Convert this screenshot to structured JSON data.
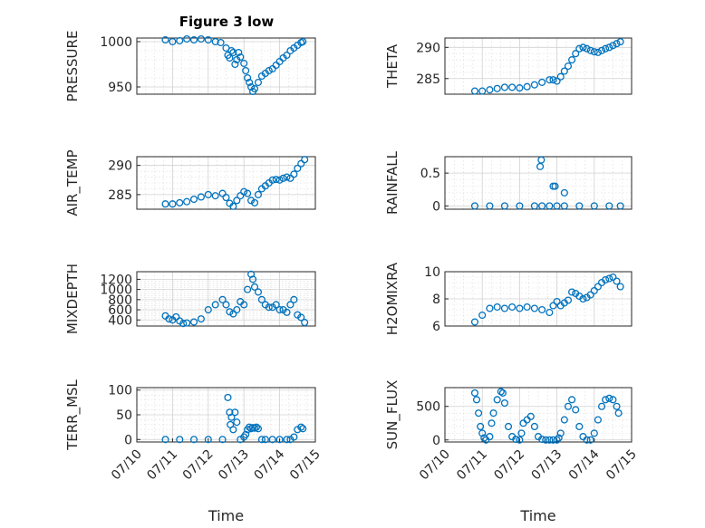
{
  "figure_title": "Figure 3 low",
  "colors": {
    "marker": "#0072bd",
    "axis": "#262626",
    "grid": "#d0d0d0"
  },
  "chart_data": [
    {
      "type": "scatter",
      "title": "Figure 3 low",
      "ylabel": "PRESSURE",
      "ylim": [
        942,
        1004
      ],
      "yticks": [
        "950",
        "1000"
      ],
      "xlim": [
        "07/10",
        "07/15"
      ],
      "grid": true,
      "x": [
        0.8,
        1.0,
        1.2,
        1.4,
        1.6,
        1.8,
        2.0,
        2.2,
        2.35,
        2.5,
        2.55,
        2.6,
        2.65,
        2.7,
        2.75,
        2.8,
        2.85,
        2.9,
        3.0,
        3.05,
        3.1,
        3.15,
        3.2,
        3.25,
        3.3,
        3.4,
        3.5,
        3.6,
        3.7,
        3.8,
        3.9,
        4.0,
        4.1,
        4.2,
        4.3,
        4.4,
        4.5,
        4.6,
        4.65
      ],
      "y": [
        1002,
        1000,
        1001,
        1003,
        1002,
        1003,
        1002,
        1000,
        999,
        993,
        985,
        982,
        990,
        988,
        975,
        980,
        988,
        983,
        976,
        968,
        960,
        955,
        950,
        945,
        948,
        955,
        962,
        965,
        968,
        970,
        974,
        978,
        982,
        985,
        990,
        993,
        996,
        999,
        1000
      ]
    },
    {
      "type": "scatter",
      "ylabel": "THETA",
      "ylim": [
        282.5,
        291.5
      ],
      "yticks": [
        "285",
        "290"
      ],
      "xlim": [
        "07/10",
        "07/15"
      ],
      "grid": true,
      "x": [
        0.8,
        1.0,
        1.2,
        1.4,
        1.6,
        1.8,
        2.0,
        2.2,
        2.4,
        2.6,
        2.8,
        2.9,
        3.0,
        3.1,
        3.2,
        3.3,
        3.4,
        3.5,
        3.6,
        3.7,
        3.8,
        3.9,
        4.0,
        4.1,
        4.2,
        4.3,
        4.4,
        4.5,
        4.6,
        4.7
      ],
      "y": [
        283.0,
        283.0,
        283.2,
        283.4,
        283.6,
        283.6,
        283.5,
        283.7,
        284.0,
        284.4,
        284.8,
        284.8,
        284.6,
        285.3,
        286.2,
        287.0,
        288.0,
        289.0,
        289.8,
        290.0,
        289.8,
        289.5,
        289.3,
        289.2,
        289.5,
        289.8,
        290.0,
        290.3,
        290.6,
        290.9
      ]
    },
    {
      "type": "scatter",
      "ylabel": "AIR_TEMP",
      "ylim": [
        282.5,
        291.5
      ],
      "yticks": [
        "285",
        "290"
      ],
      "xlim": [
        "07/10",
        "07/15"
      ],
      "grid": true,
      "x": [
        0.8,
        1.0,
        1.2,
        1.4,
        1.6,
        1.8,
        2.0,
        2.2,
        2.4,
        2.5,
        2.6,
        2.7,
        2.8,
        2.9,
        3.0,
        3.1,
        3.2,
        3.3,
        3.4,
        3.5,
        3.6,
        3.7,
        3.8,
        3.9,
        4.0,
        4.1,
        4.2,
        4.3,
        4.4,
        4.5,
        4.6,
        4.7
      ],
      "y": [
        283.4,
        283.4,
        283.6,
        283.8,
        284.2,
        284.6,
        285.0,
        284.8,
        285.2,
        284.5,
        283.5,
        283.0,
        284.0,
        284.8,
        285.5,
        285.2,
        284.0,
        283.6,
        285.0,
        286.0,
        286.5,
        287.0,
        287.5,
        287.6,
        287.5,
        287.8,
        288.0,
        287.8,
        288.5,
        289.5,
        290.3,
        291.0
      ]
    },
    {
      "type": "scatter",
      "ylabel": "RAINFALL",
      "ylim": [
        -0.05,
        0.75
      ],
      "yticks": [
        "0",
        "0.5"
      ],
      "xlim": [
        "07/10",
        "07/15"
      ],
      "grid": true,
      "x": [
        0.8,
        1.2,
        1.6,
        2.0,
        2.4,
        2.55,
        2.58,
        2.6,
        2.8,
        2.9,
        2.95,
        3.0,
        3.2,
        3.2,
        3.6,
        4.0,
        4.4,
        4.7
      ],
      "y": [
        0,
        0,
        0,
        0,
        0,
        0.6,
        0.7,
        0,
        0,
        0.3,
        0.3,
        0,
        0.2,
        0,
        0,
        0,
        0,
        0
      ]
    },
    {
      "type": "scatter",
      "ylabel": "MIXDEPTH",
      "ylim": [
        280,
        1350
      ],
      "yticks": [
        "400",
        "600",
        "800",
        "1000",
        "1200"
      ],
      "xlim": [
        "07/10",
        "07/15"
      ],
      "grid": true,
      "x": [
        0.8,
        0.9,
        1.0,
        1.1,
        1.2,
        1.3,
        1.4,
        1.6,
        1.8,
        2.0,
        2.2,
        2.4,
        2.5,
        2.6,
        2.7,
        2.8,
        2.9,
        3.0,
        3.1,
        3.2,
        3.25,
        3.3,
        3.4,
        3.5,
        3.6,
        3.7,
        3.8,
        3.9,
        4.0,
        4.1,
        4.2,
        4.3,
        4.4,
        4.5,
        4.6,
        4.7
      ],
      "y": [
        480,
        420,
        400,
        460,
        380,
        330,
        340,
        360,
        420,
        600,
        700,
        800,
        700,
        560,
        520,
        600,
        760,
        700,
        1000,
        1300,
        1200,
        1050,
        950,
        800,
        700,
        650,
        650,
        700,
        600,
        600,
        550,
        700,
        800,
        500,
        450,
        350
      ]
    },
    {
      "type": "scatter",
      "ylabel": "H2OMIXRA",
      "ylim": [
        6,
        10
      ],
      "yticks": [
        "6",
        "8",
        "10"
      ],
      "xlim": [
        "07/10",
        "07/15"
      ],
      "grid": true,
      "x": [
        0.8,
        1.0,
        1.2,
        1.4,
        1.6,
        1.8,
        2.0,
        2.2,
        2.4,
        2.6,
        2.8,
        2.9,
        3.0,
        3.1,
        3.2,
        3.3,
        3.4,
        3.5,
        3.6,
        3.7,
        3.8,
        3.9,
        4.0,
        4.1,
        4.2,
        4.3,
        4.4,
        4.5,
        4.6,
        4.7
      ],
      "y": [
        6.3,
        6.8,
        7.3,
        7.4,
        7.3,
        7.4,
        7.3,
        7.4,
        7.3,
        7.2,
        7.0,
        7.5,
        7.8,
        7.5,
        7.7,
        7.9,
        8.5,
        8.4,
        8.2,
        8.0,
        8.1,
        8.3,
        8.6,
        8.9,
        9.2,
        9.4,
        9.5,
        9.6,
        9.3,
        8.9
      ]
    },
    {
      "type": "scatter",
      "ylabel": "TERR_MSL",
      "ylim": [
        -5,
        105
      ],
      "yticks": [
        "0",
        "50",
        "100"
      ],
      "xlim": [
        "07/10",
        "07/15"
      ],
      "xticks": [
        "07/10",
        "07/11",
        "07/12",
        "07/13",
        "07/14",
        "07/15"
      ],
      "xlabel": "Time",
      "grid": true,
      "x": [
        0.8,
        1.2,
        1.6,
        2.0,
        2.4,
        2.55,
        2.6,
        2.62,
        2.65,
        2.7,
        2.75,
        2.8,
        2.9,
        3.0,
        3.05,
        3.1,
        3.15,
        3.2,
        3.25,
        3.3,
        3.35,
        3.4,
        3.5,
        3.6,
        3.8,
        4.0,
        4.2,
        4.3,
        4.4,
        4.5,
        4.6,
        4.65
      ],
      "y": [
        0,
        0,
        0,
        0,
        0,
        85,
        55,
        30,
        45,
        20,
        55,
        35,
        0,
        5,
        10,
        20,
        25,
        22,
        24,
        23,
        25,
        22,
        0,
        0,
        0,
        0,
        0,
        0,
        5,
        20,
        25,
        22
      ]
    },
    {
      "type": "scatter",
      "ylabel": "SUN_FLUX",
      "ylim": [
        -30,
        780
      ],
      "yticks": [
        "0",
        "500"
      ],
      "xlim": [
        "07/10",
        "07/15"
      ],
      "xticks": [
        "07/10",
        "07/11",
        "07/12",
        "07/13",
        "07/14",
        "07/15"
      ],
      "xlabel": "Time",
      "grid": true,
      "x": [
        0.8,
        0.85,
        0.9,
        0.95,
        1.0,
        1.05,
        1.1,
        1.2,
        1.25,
        1.3,
        1.4,
        1.5,
        1.55,
        1.6,
        1.7,
        1.8,
        1.9,
        2.0,
        2.05,
        2.1,
        2.2,
        2.3,
        2.4,
        2.5,
        2.6,
        2.7,
        2.8,
        2.9,
        3.0,
        3.05,
        3.1,
        3.2,
        3.3,
        3.4,
        3.5,
        3.6,
        3.7,
        3.8,
        3.9,
        4.0,
        4.1,
        4.2,
        4.3,
        4.4,
        4.5,
        4.6,
        4.65
      ],
      "y": [
        700,
        600,
        400,
        200,
        100,
        30,
        0,
        50,
        250,
        400,
        600,
        720,
        700,
        550,
        200,
        50,
        10,
        0,
        100,
        250,
        300,
        350,
        200,
        50,
        10,
        0,
        0,
        0,
        0,
        30,
        100,
        300,
        500,
        600,
        450,
        200,
        50,
        0,
        0,
        100,
        300,
        500,
        600,
        620,
        600,
        500,
        400
      ]
    }
  ]
}
